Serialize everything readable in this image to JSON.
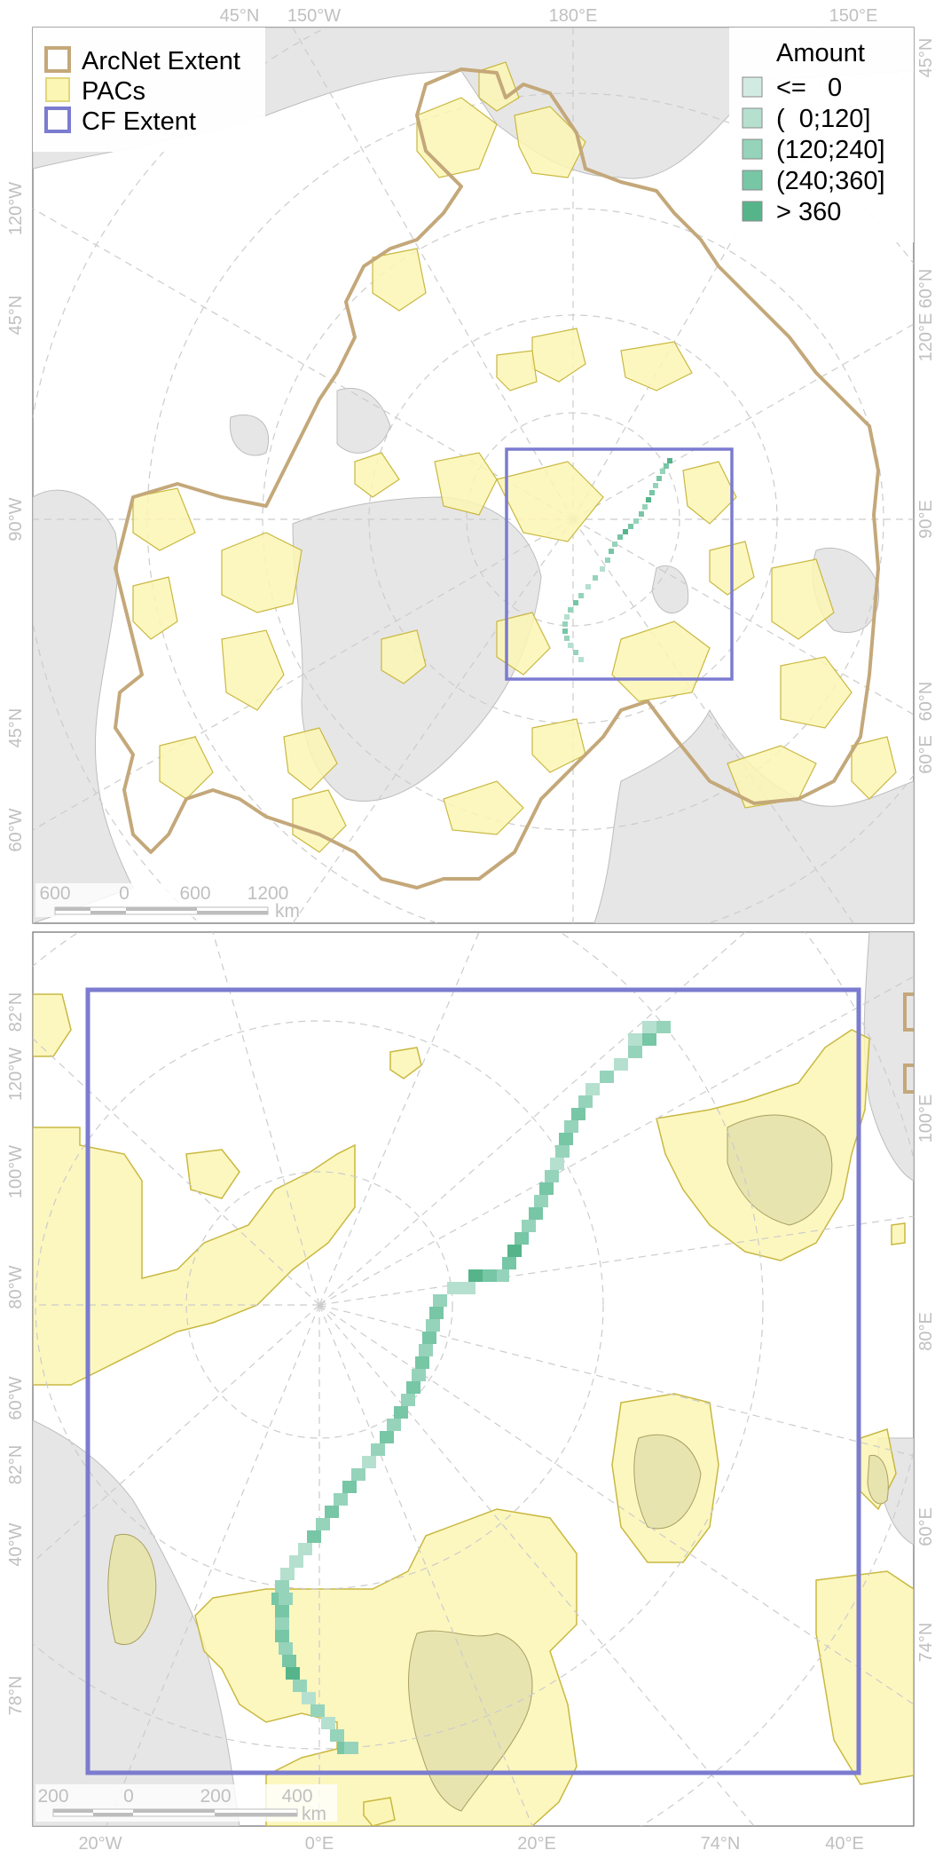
{
  "colors": {
    "arcnet": "#c4a87a",
    "pacs_fill": "#fbf6b4",
    "pacs_stroke": "#c9b840",
    "cf_extent": "#7b7bd0",
    "land": "#e6e6e6",
    "ocean": "#ffffff",
    "graticule": "#d0d0d0",
    "amount": [
      "#d2ebe2",
      "#b5e0cf",
      "#96d3bb",
      "#77c6a6",
      "#56b48b"
    ]
  },
  "top_map": {
    "legend": {
      "items": [
        {
          "label": "ArcNet Extent",
          "kind": "arcnet"
        },
        {
          "label": "PACs",
          "kind": "pacs"
        },
        {
          "label": "CF Extent",
          "kind": "cf"
        }
      ]
    },
    "amount_legend": {
      "title": "Amount",
      "items": [
        "<=   0",
        "(  0;120]",
        "(120;240]",
        "(240;360]",
        "> 360"
      ]
    },
    "top_labels": [
      "45°N",
      "150°W",
      "180°E",
      "150°E"
    ],
    "left_labels": [
      "120°W",
      "45°N",
      "90°W",
      "45°N",
      "60°W"
    ],
    "right_labels": [
      "45°N",
      "120°E",
      "60°N",
      "90°E",
      "60°N",
      "60°E"
    ],
    "scale": {
      "ticks": [
        "600",
        "0",
        "600",
        "1200"
      ],
      "unit": "km"
    }
  },
  "bottom_map": {
    "left_labels": [
      "82°N",
      "120°W",
      "100°W",
      "80°W",
      "60°W",
      "82°N",
      "40°W",
      "78°N"
    ],
    "right_labels": [
      "100°E",
      "80°E",
      "60°E",
      "74°N"
    ],
    "bottom_labels": [
      "20°W",
      "0°E",
      "20°E",
      "74°N",
      "40°E"
    ],
    "scale": {
      "ticks": [
        "200",
        "0",
        "200",
        "400"
      ],
      "unit": "km"
    }
  }
}
